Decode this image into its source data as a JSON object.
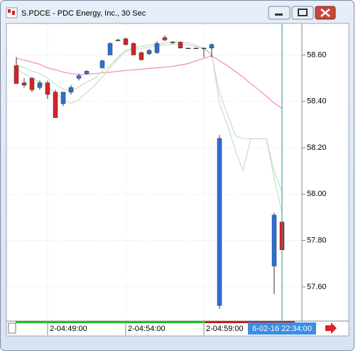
{
  "window_title": "S.PDCE - PDC Energy, Inc., 30 Sec",
  "chart_data": {
    "type": "candlestick",
    "categories": [
      null,
      null,
      null,
      null,
      "2-04:49:00",
      null,
      null,
      null,
      null,
      null,
      null,
      null,
      null,
      null,
      "2-04:54:00",
      null,
      null,
      null,
      null,
      null,
      null,
      null,
      null,
      null,
      "2-04:59:00",
      null,
      null,
      null,
      null,
      null,
      null,
      null,
      null,
      null,
      null
    ],
    "cursor_label": "6-02-16 22:34:00",
    "open": [
      58.554,
      58.48,
      58.5,
      58.46,
      58.48,
      58.44,
      58.39,
      58.44,
      58.5,
      58.52,
      null,
      58.545,
      58.6,
      58.665,
      58.67,
      58.65,
      58.61,
      58.605,
      58.61,
      58.675,
      58.655,
      58.655,
      58.63,
      58.63,
      58.63,
      58.63,
      57.52,
      null,
      null,
      null,
      null,
      null,
      null,
      57.69,
      57.88
    ],
    "high": [
      58.591,
      58.5,
      58.505,
      58.49,
      58.49,
      58.45,
      58.44,
      58.47,
      58.52,
      58.535,
      null,
      58.58,
      58.655,
      58.67,
      58.675,
      58.655,
      58.615,
      58.625,
      58.66,
      58.685,
      58.66,
      58.66,
      58.63,
      58.63,
      58.63,
      58.65,
      58.255,
      null,
      null,
      null,
      null,
      null,
      null,
      57.92,
      57.89
    ],
    "low": [
      58.477,
      58.46,
      58.44,
      58.45,
      58.41,
      58.33,
      58.38,
      58.43,
      58.49,
      58.515,
      null,
      58.54,
      58.6,
      58.66,
      58.64,
      58.6,
      58.575,
      58.6,
      58.605,
      58.66,
      58.65,
      58.63,
      58.63,
      58.63,
      58.59,
      58.59,
      57.505,
      null,
      null,
      null,
      null,
      null,
      null,
      57.57,
      57.76
    ],
    "close": [
      58.477,
      58.47,
      58.45,
      58.48,
      58.43,
      58.33,
      58.44,
      58.46,
      58.51,
      58.53,
      null,
      58.575,
      58.65,
      58.665,
      58.645,
      58.6,
      58.58,
      58.62,
      58.65,
      58.665,
      58.655,
      58.63,
      58.63,
      58.63,
      58.63,
      58.645,
      58.24,
      null,
      null,
      null,
      null,
      null,
      null,
      57.91,
      57.76
    ],
    "up_color": "#2a6fd6",
    "down_color": "#d42424",
    "flat_color": "#333333",
    "lines": [
      {
        "color": "#f08ab8",
        "values": [
          58.585,
          58.579,
          58.569,
          58.56,
          58.545,
          58.536,
          58.526,
          58.52,
          58.514,
          58.517,
          58.52,
          58.523,
          58.526,
          58.53,
          58.533,
          58.536,
          58.539,
          58.542,
          58.545,
          58.548,
          58.551,
          58.557,
          58.563,
          58.575,
          58.585,
          58.597,
          58.575,
          58.554,
          58.53,
          58.505,
          58.477,
          58.45,
          58.422,
          58.392,
          58.37
        ]
      },
      {
        "color": "#c6dfc6",
        "values": [
          58.56,
          58.545,
          58.53,
          58.52,
          58.499,
          58.474,
          58.453,
          58.444,
          58.462,
          58.484,
          58.499,
          58.53,
          58.554,
          58.591,
          58.621,
          58.631,
          58.637,
          58.643,
          58.646,
          58.652,
          58.658,
          58.655,
          58.652,
          58.643,
          58.628,
          58.606,
          58.392,
          58.3,
          58.193,
          58.101,
          58.239,
          58.239,
          58.239,
          58.101,
          58.009
        ]
      },
      {
        "color": "#c6dfc6",
        "values": [
          58.539,
          58.52,
          58.499,
          58.484,
          58.462,
          58.438,
          58.407,
          58.392,
          58.407,
          58.438,
          58.468,
          58.505,
          58.545,
          58.582,
          58.615,
          58.625,
          58.628,
          58.634,
          58.64,
          58.643,
          58.646,
          58.646,
          58.643,
          58.637,
          58.628,
          58.597,
          58.438,
          58.346,
          58.254,
          58.239,
          58.239,
          58.239,
          58.239,
          58.07,
          57.917
        ]
      }
    ],
    "ylim": [
      57.465,
      58.73
    ],
    "yticks": [
      {
        "value": 57.6,
        "label": "57.60"
      },
      {
        "value": 57.8,
        "label": "57.80"
      },
      {
        "value": 58.0,
        "label": "58.00"
      },
      {
        "value": 58.2,
        "label": "58.20"
      },
      {
        "value": 58.4,
        "label": "58.40"
      },
      {
        "value": 58.6,
        "label": "58.60"
      }
    ],
    "grid": true
  }
}
